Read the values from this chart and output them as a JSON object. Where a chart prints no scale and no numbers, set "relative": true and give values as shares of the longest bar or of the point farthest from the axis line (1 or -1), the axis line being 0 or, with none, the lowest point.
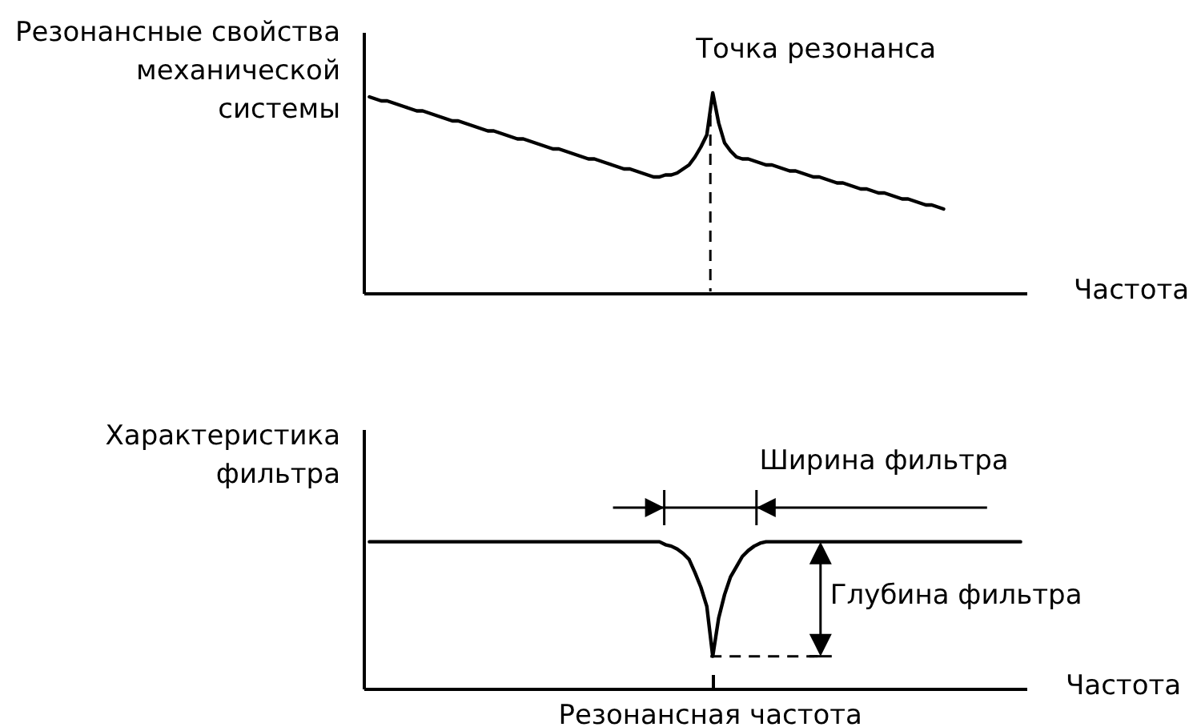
{
  "chart_data": [
    {
      "type": "line",
      "ylabel": "Резонансные свойства\nмеханической\nсистемы",
      "xlabel": "Частота",
      "relative": true,
      "tick_labels": false,
      "categories": [
        null,
        null,
        null,
        null,
        null,
        null,
        null,
        null,
        null,
        null,
        null,
        null,
        null,
        null,
        null,
        null,
        null,
        null,
        null,
        null,
        null,
        null,
        null,
        null,
        null,
        null,
        null,
        null,
        null,
        null,
        null,
        null,
        null,
        null,
        null,
        null,
        null,
        null,
        null,
        null,
        null,
        null,
        null,
        null,
        null,
        null,
        null,
        null,
        null,
        null,
        null,
        null,
        null,
        null,
        null,
        null,
        null,
        null,
        null,
        null,
        null,
        null,
        null,
        null,
        null,
        null,
        null,
        null,
        null,
        null,
        null,
        null,
        null,
        null,
        null,
        null,
        null,
        null,
        null,
        null,
        null,
        null,
        null,
        null,
        null,
        null,
        null,
        null,
        null,
        null,
        null,
        null,
        null,
        null,
        null,
        null,
        null,
        null,
        null,
        null,
        null,
        null,
        null,
        null,
        null,
        null,
        null,
        null,
        null,
        null,
        null
      ],
      "series": [
        {
          "color": "#000000",
          "values": [
            0.98,
            0.97,
            0.96,
            0.96,
            0.95,
            0.94,
            0.93,
            0.92,
            0.91,
            0.91,
            0.9,
            0.89,
            0.88,
            0.87,
            0.86,
            0.86,
            0.85,
            0.84,
            0.83,
            0.82,
            0.81,
            0.81,
            0.8,
            0.79,
            0.78,
            0.77,
            0.77,
            0.76,
            0.75,
            0.74,
            0.73,
            0.72,
            0.72,
            0.71,
            0.7,
            0.69,
            0.68,
            0.67,
            0.67,
            0.66,
            0.65,
            0.64,
            0.63,
            0.62,
            0.62,
            0.61,
            0.6,
            0.59,
            0.58,
            0.58,
            0.59,
            0.59,
            0.6,
            0.62,
            0.64,
            0.68,
            0.73,
            0.79,
            1,
            0.85,
            0.75,
            0.71,
            0.68,
            0.67,
            0.67,
            0.66,
            0.65,
            0.64,
            0.64,
            0.63,
            0.62,
            0.61,
            0.61,
            0.6,
            0.59,
            0.58,
            0.58,
            0.57,
            0.56,
            0.55,
            0.55,
            0.54,
            0.53,
            0.52,
            0.52,
            0.51,
            0.5,
            0.5,
            0.49,
            0.48,
            0.47,
            0.47,
            0.46,
            0.45,
            0.44,
            0.44,
            0.43,
            0.42,
            null,
            null,
            null,
            null,
            null,
            null,
            null,
            null,
            null,
            null,
            null,
            null,
            null
          ]
        }
      ],
      "annotations": [
        "Точка резонанса"
      ]
    },
    {
      "type": "line",
      "ylabel": "Характеристика\nфильтра",
      "xlabel": "Частота",
      "relative": true,
      "tick_labels": false,
      "categories": [
        null,
        null,
        null,
        null,
        null,
        null,
        null,
        null,
        null,
        null,
        null,
        null,
        null,
        null,
        null,
        null,
        null,
        null,
        null,
        null,
        null,
        null,
        null,
        null,
        null,
        null,
        null,
        null,
        null,
        null,
        null,
        null,
        null,
        null,
        null,
        null,
        null,
        null,
        null,
        null,
        null,
        null,
        null,
        null,
        null,
        null,
        null,
        null,
        null,
        null,
        null,
        null,
        null,
        null,
        null,
        null,
        null,
        null,
        null,
        null,
        null,
        null,
        null,
        null,
        null,
        null,
        null,
        null,
        null,
        null,
        null,
        null,
        null,
        null,
        null,
        null,
        null,
        null,
        null,
        null,
        null,
        null,
        null,
        null,
        null,
        null,
        null,
        null,
        null,
        null,
        null,
        null,
        null,
        null,
        null,
        null,
        null,
        null,
        null,
        null,
        null,
        null,
        null,
        null,
        null,
        null,
        null,
        null,
        null,
        null,
        null
      ],
      "series": [
        {
          "color": "#000000",
          "values": [
            1,
            1,
            1,
            1,
            1,
            1,
            1,
            1,
            1,
            1,
            1,
            1,
            1,
            1,
            1,
            1,
            1,
            1,
            1,
            1,
            1,
            1,
            1,
            1,
            1,
            1,
            1,
            1,
            1,
            1,
            1,
            1,
            1,
            1,
            1,
            1,
            1,
            1,
            1,
            1,
            1,
            1,
            1,
            1,
            1,
            1,
            1,
            1,
            1,
            1,
            0.98,
            0.97,
            0.95,
            0.92,
            0.88,
            0.79,
            0.69,
            0.56,
            0.22,
            0.48,
            0.64,
            0.76,
            0.83,
            0.9,
            0.94,
            0.97,
            0.99,
            1,
            1,
            1,
            1,
            1,
            1,
            1,
            1,
            1,
            1,
            1,
            1,
            1,
            1,
            1,
            1,
            1,
            1,
            1,
            1,
            1,
            1,
            1,
            1,
            1,
            1,
            1,
            1,
            1,
            1,
            1,
            1,
            1,
            1,
            1,
            1,
            1,
            1,
            1,
            1,
            1,
            1,
            1,
            1
          ]
        }
      ],
      "ref_lines": [
        {
          "axis": "y",
          "value": 0.22,
          "line_style": "dashed",
          "color": "#000000"
        }
      ],
      "annotations": [
        "Ширина фильтра",
        "Глубина фильтра",
        "Резонансная частота"
      ]
    }
  ]
}
